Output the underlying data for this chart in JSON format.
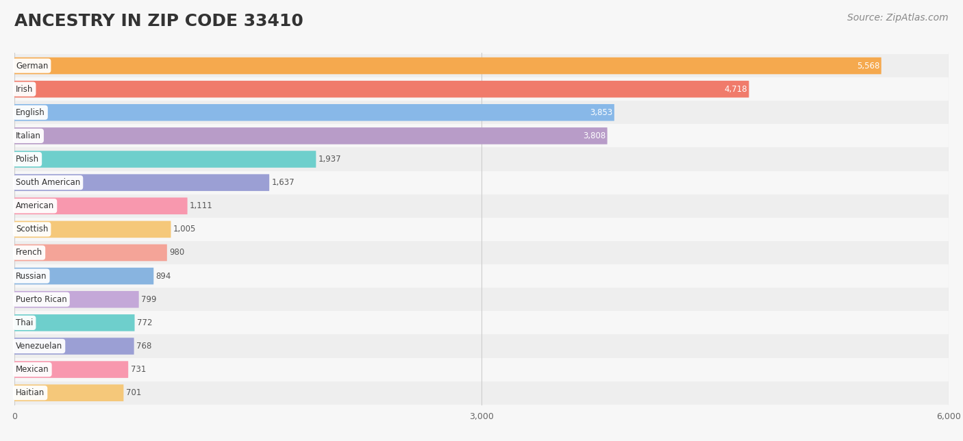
{
  "title": "ANCESTRY IN ZIP CODE 33410",
  "source": "Source: ZipAtlas.com",
  "categories": [
    "German",
    "Irish",
    "English",
    "Italian",
    "Polish",
    "South American",
    "American",
    "Scottish",
    "French",
    "Russian",
    "Puerto Rican",
    "Thai",
    "Venezuelan",
    "Mexican",
    "Haitian"
  ],
  "values": [
    5568,
    4718,
    3853,
    3808,
    1937,
    1637,
    1111,
    1005,
    980,
    894,
    799,
    772,
    768,
    731,
    701
  ],
  "bar_colors": [
    "#F5A94E",
    "#F07B6B",
    "#88B8E8",
    "#B89CC8",
    "#6ECFCC",
    "#9B9FD4",
    "#F898AE",
    "#F5C87A",
    "#F4A498",
    "#88B4E0",
    "#C4A8D8",
    "#6ECFCC",
    "#9B9FD4",
    "#F898AE",
    "#F5C87A"
  ],
  "value_inside": [
    true,
    true,
    true,
    true,
    false,
    false,
    false,
    false,
    false,
    false,
    false,
    false,
    false,
    false,
    false
  ],
  "xlim": [
    0,
    6000
  ],
  "xticks": [
    0,
    3000,
    6000
  ],
  "xtick_labels": [
    "0",
    "3,000",
    "6,000"
  ],
  "background_color": "#f7f7f7",
  "row_colors": [
    "#eeeeee",
    "#f7f7f7"
  ],
  "title_fontsize": 18,
  "source_fontsize": 10
}
